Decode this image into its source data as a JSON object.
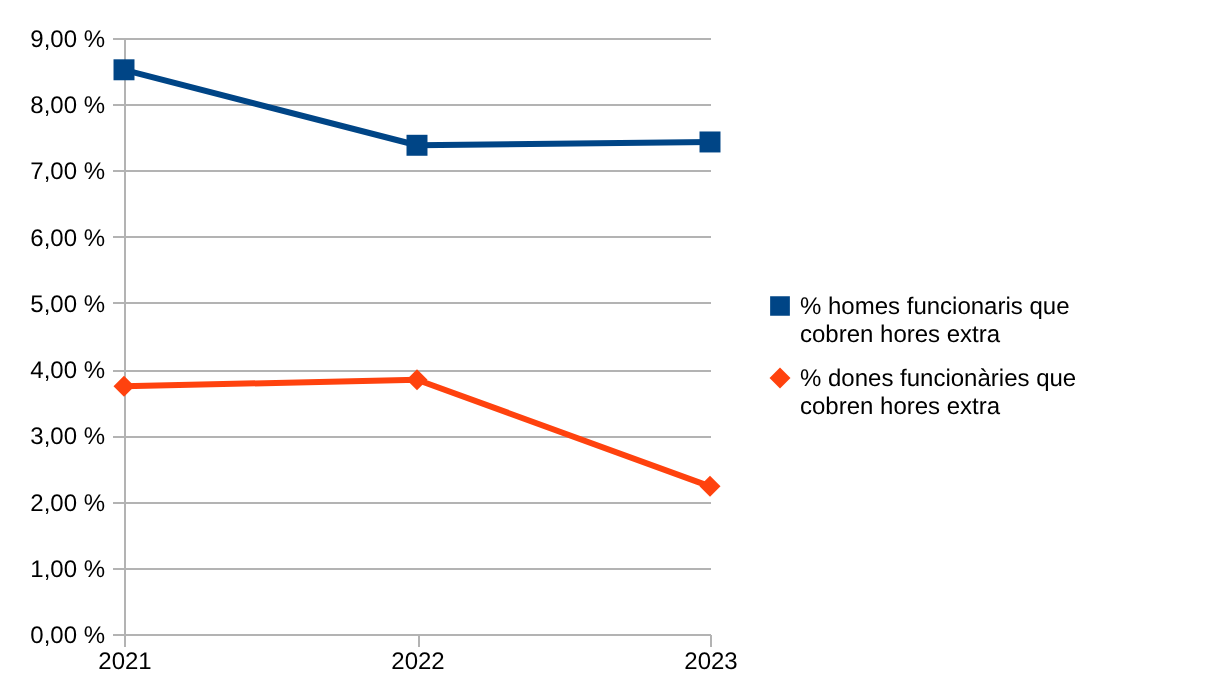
{
  "chart_data": {
    "type": "line",
    "categories": [
      "2021",
      "2022",
      "2023"
    ],
    "series": [
      {
        "name": "% homes funcionaris que cobren hores extra",
        "color": "#004586",
        "marker": "square",
        "values": [
          8.52,
          7.38,
          7.43
        ]
      },
      {
        "name": "% dones funcionàries que cobren hores extra",
        "color": "#ff420e",
        "marker": "diamond",
        "values": [
          3.74,
          3.84,
          2.23
        ]
      }
    ],
    "ylim": [
      0,
      9
    ],
    "yticks": [
      {
        "value": 0,
        "label": "0,00 %"
      },
      {
        "value": 1,
        "label": "1,00 %"
      },
      {
        "value": 2,
        "label": "2,00 %"
      },
      {
        "value": 3,
        "label": "3,00 %"
      },
      {
        "value": 4,
        "label": "4,00 %"
      },
      {
        "value": 5,
        "label": "5,00 %"
      },
      {
        "value": 6,
        "label": "6,00 %"
      },
      {
        "value": 7,
        "label": "7,00 %"
      },
      {
        "value": 8,
        "label": "8,00 %"
      },
      {
        "value": 9,
        "label": "9,00 %"
      }
    ],
    "grid": "y",
    "legend": "right",
    "line_style": "solid"
  }
}
